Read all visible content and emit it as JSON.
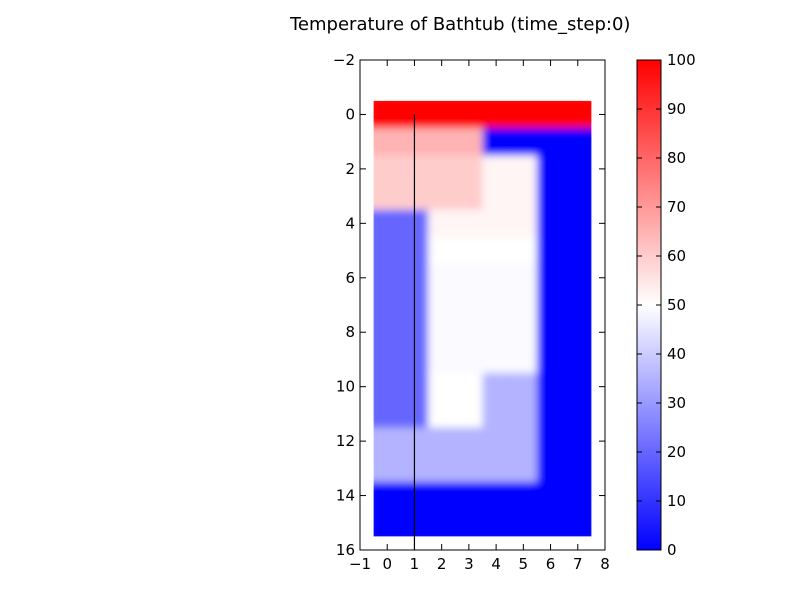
{
  "chart_data": {
    "type": "heatmap",
    "title": "Temperature of Bathtub (time_step:0)",
    "xlabel": "",
    "ylabel": "",
    "xlim": [
      -1,
      8
    ],
    "ylim": [
      16,
      -2
    ],
    "x_ticks": [
      -1,
      0,
      1,
      2,
      3,
      4,
      5,
      6,
      7,
      8
    ],
    "y_ticks": [
      -2,
      0,
      2,
      4,
      6,
      8,
      10,
      12,
      14,
      16
    ],
    "x_tick_labels": [
      "−1",
      "0",
      "1",
      "2",
      "3",
      "4",
      "5",
      "6",
      "7",
      "8"
    ],
    "y_tick_labels": [
      "−2",
      "0",
      "2",
      "4",
      "6",
      "8",
      "10",
      "12",
      "14",
      "16"
    ],
    "grid": false,
    "colormap": "bwr",
    "color_range": [
      0,
      100
    ],
    "colorbar": {
      "location": "right",
      "ticks": [
        0,
        10,
        20,
        30,
        40,
        50,
        60,
        70,
        80,
        90,
        100
      ],
      "tick_labels": [
        "0",
        "10",
        "20",
        "30",
        "40",
        "50",
        "60",
        "70",
        "80",
        "90",
        "100"
      ]
    },
    "grid_columns": [
      0,
      1,
      2,
      3,
      4,
      5,
      6,
      7
    ],
    "grid_rows": [
      0,
      1,
      2,
      3,
      4,
      5,
      6,
      7,
      8,
      9,
      10,
      11,
      12,
      13,
      14,
      15
    ],
    "values": [
      [
        100,
        100,
        100,
        100,
        100,
        100,
        100,
        100
      ],
      [
        65,
        65,
        65,
        65,
        0,
        0,
        0,
        0
      ],
      [
        60,
        60,
        60,
        60,
        52,
        52,
        0,
        0
      ],
      [
        60,
        60,
        60,
        60,
        52,
        52,
        0,
        0
      ],
      [
        20,
        20,
        52,
        52,
        52,
        52,
        0,
        0
      ],
      [
        20,
        20,
        50,
        50,
        50,
        50,
        0,
        0
      ],
      [
        20,
        20,
        49,
        49,
        49,
        49,
        0,
        0
      ],
      [
        20,
        20,
        49,
        49,
        49,
        49,
        0,
        0
      ],
      [
        20,
        20,
        49,
        49,
        49,
        49,
        0,
        0
      ],
      [
        20,
        20,
        49,
        49,
        49,
        49,
        0,
        0
      ],
      [
        20,
        20,
        50,
        50,
        35,
        35,
        0,
        0
      ],
      [
        20,
        20,
        50,
        50,
        35,
        35,
        0,
        0
      ],
      [
        35,
        35,
        35,
        35,
        35,
        35,
        0,
        0
      ],
      [
        35,
        35,
        35,
        35,
        35,
        35,
        0,
        0
      ],
      [
        0,
        0,
        0,
        0,
        0,
        0,
        0,
        0
      ],
      [
        0,
        0,
        0,
        0,
        0,
        0,
        0,
        0
      ]
    ],
    "overlay_line": {
      "x": [
        1,
        1
      ],
      "y": [
        0,
        16
      ]
    }
  }
}
